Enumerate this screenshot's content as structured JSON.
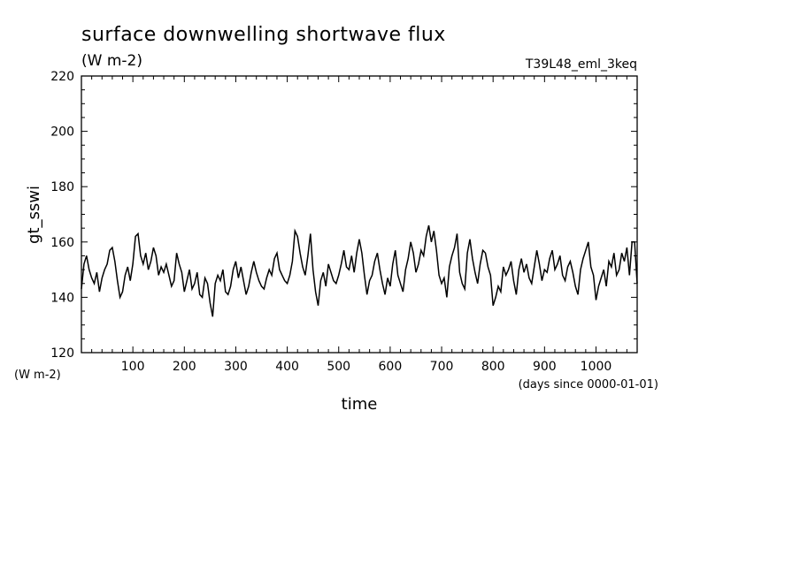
{
  "chart_data": {
    "type": "line",
    "title": "surface downwelling shortwave flux",
    "subtitle": "(W m-2)",
    "run_id": "T39L48_eml_3keq",
    "xlabel": "time",
    "xunits": "(days since 0000-01-01)",
    "ylabel": "gt_sswi",
    "yunits": "(W m-2)",
    "xlim": [
      0,
      1080
    ],
    "ylim": [
      120,
      220
    ],
    "xticks": [
      100,
      200,
      300,
      400,
      500,
      600,
      700,
      800,
      900,
      1000
    ],
    "yticks": [
      120,
      140,
      160,
      180,
      200,
      220
    ],
    "grid": false,
    "legend": "none",
    "series": [
      {
        "color": "#000000",
        "x": [
          0,
          5,
          10,
          15,
          20,
          25,
          30,
          35,
          40,
          45,
          50,
          55,
          60,
          65,
          70,
          75,
          80,
          85,
          90,
          95,
          100,
          105,
          110,
          115,
          120,
          125,
          130,
          135,
          140,
          145,
          150,
          155,
          160,
          165,
          170,
          175,
          180,
          185,
          190,
          195,
          200,
          205,
          210,
          215,
          220,
          225,
          230,
          235,
          240,
          245,
          250,
          255,
          260,
          265,
          270,
          275,
          280,
          285,
          290,
          295,
          300,
          305,
          310,
          315,
          320,
          325,
          330,
          335,
          340,
          345,
          350,
          355,
          360,
          365,
          370,
          375,
          380,
          385,
          390,
          395,
          400,
          405,
          410,
          415,
          420,
          425,
          430,
          435,
          440,
          445,
          450,
          455,
          460,
          465,
          470,
          475,
          480,
          485,
          490,
          495,
          500,
          505,
          510,
          515,
          520,
          525,
          530,
          535,
          540,
          545,
          550,
          555,
          560,
          565,
          570,
          575,
          580,
          585,
          590,
          595,
          600,
          605,
          610,
          615,
          620,
          625,
          630,
          635,
          640,
          645,
          650,
          655,
          660,
          665,
          670,
          675,
          680,
          685,
          690,
          695,
          700,
          705,
          710,
          715,
          720,
          725,
          730,
          735,
          740,
          745,
          750,
          755,
          760,
          765,
          770,
          775,
          780,
          785,
          790,
          795,
          800,
          805,
          810,
          815,
          820,
          825,
          830,
          835,
          840,
          845,
          850,
          855,
          860,
          865,
          870,
          875,
          880,
          885,
          890,
          895,
          900,
          905,
          910,
          915,
          920,
          925,
          930,
          935,
          940,
          945,
          950,
          955,
          960,
          965,
          970,
          975,
          980,
          985,
          990,
          995,
          1000,
          1005,
          1010,
          1015,
          1020,
          1025,
          1030,
          1035,
          1040,
          1045,
          1050,
          1055,
          1060,
          1065,
          1070,
          1075,
          1080
        ],
        "y": [
          143,
          152,
          155,
          150,
          147,
          145,
          149,
          142,
          147,
          150,
          152,
          157,
          158,
          153,
          146,
          140,
          142,
          148,
          151,
          146,
          152,
          162,
          163,
          155,
          152,
          156,
          150,
          153,
          158,
          155,
          148,
          151,
          149,
          152,
          148,
          144,
          146,
          156,
          152,
          149,
          142,
          146,
          150,
          143,
          145,
          149,
          141,
          140,
          147,
          145,
          138,
          133,
          145,
          148,
          146,
          150,
          142,
          141,
          144,
          150,
          153,
          147,
          151,
          146,
          141,
          144,
          149,
          153,
          149,
          146,
          144,
          143,
          147,
          150,
          148,
          154,
          156,
          150,
          148,
          146,
          145,
          148,
          153,
          164,
          162,
          156,
          151,
          148,
          155,
          163,
          150,
          142,
          137,
          146,
          149,
          144,
          152,
          149,
          146,
          145,
          148,
          152,
          157,
          151,
          150,
          155,
          149,
          156,
          161,
          156,
          148,
          141,
          146,
          148,
          153,
          156,
          150,
          145,
          141,
          147,
          144,
          152,
          157,
          148,
          145,
          142,
          150,
          154,
          160,
          156,
          149,
          152,
          157,
          155,
          162,
          166,
          160,
          164,
          157,
          148,
          145,
          147,
          140,
          151,
          155,
          158,
          163,
          149,
          145,
          143,
          156,
          161,
          154,
          149,
          145,
          152,
          157,
          156,
          151,
          148,
          137,
          140,
          144,
          142,
          151,
          148,
          150,
          153,
          146,
          141,
          150,
          154,
          149,
          152,
          147,
          145,
          151,
          157,
          152,
          146,
          150,
          149,
          154,
          157,
          150,
          152,
          155,
          148,
          146,
          151,
          153,
          149,
          144,
          141,
          150,
          154,
          157,
          160,
          151,
          148,
          139,
          144,
          147,
          150,
          144,
          153,
          151,
          156,
          148,
          150,
          156,
          153,
          158,
          148,
          160,
          160,
          145
        ]
      }
    ]
  }
}
